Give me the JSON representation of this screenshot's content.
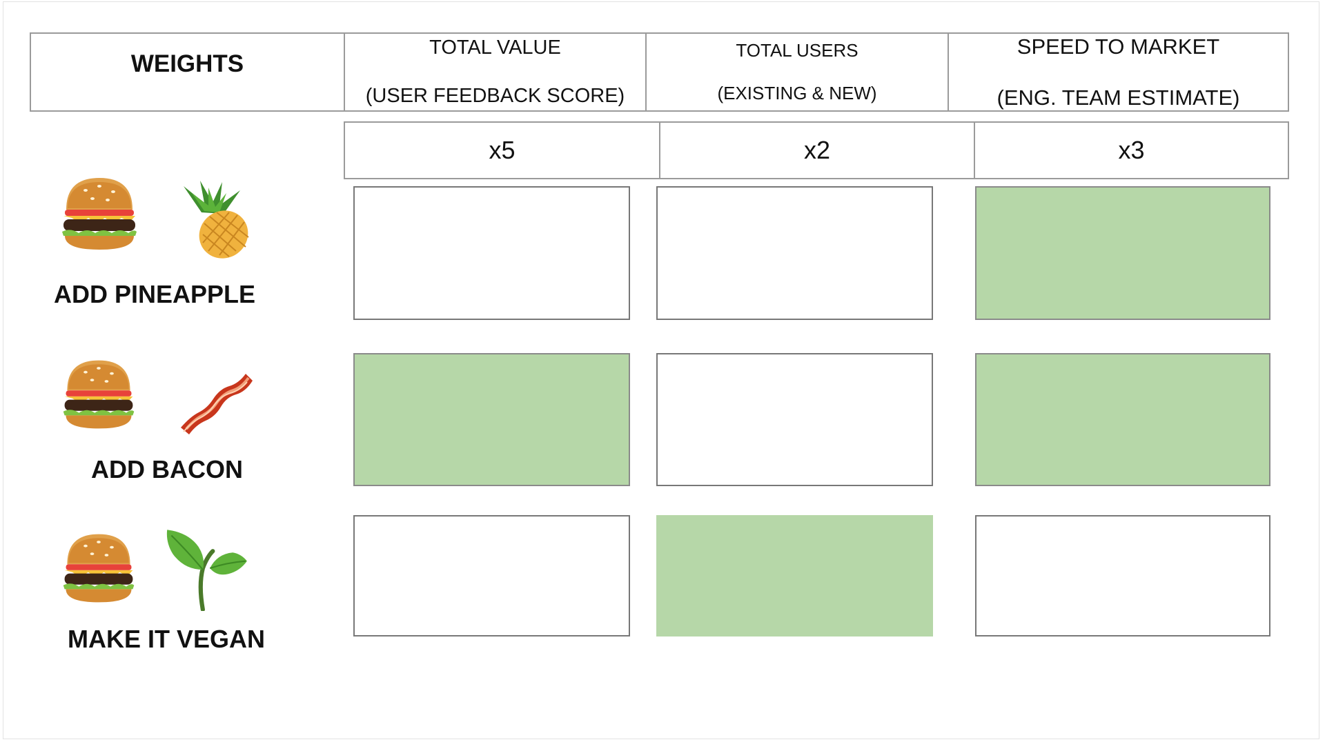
{
  "header": {
    "weights_label": "WEIGHTS",
    "columns": [
      {
        "line1": "TOTAL VALUE",
        "line2": "(USER FEEDBACK SCORE)"
      },
      {
        "line1": "TOTAL USERS",
        "line2": "(EXISTING & NEW)"
      },
      {
        "line1": "SPEED TO MARKET",
        "line2": "(ENG. TEAM ESTIMATE)"
      }
    ]
  },
  "weights": [
    "x5",
    "x2",
    "x3"
  ],
  "features": [
    {
      "label": "ADD PINEAPPLE",
      "icons": [
        "burger-icon",
        "pineapple-icon"
      ],
      "cells": [
        false,
        false,
        true
      ]
    },
    {
      "label": "ADD BACON",
      "icons": [
        "burger-icon",
        "bacon-icon"
      ],
      "cells": [
        true,
        false,
        true
      ]
    },
    {
      "label": "MAKE IT VEGAN",
      "icons": [
        "burger-icon",
        "seedling-icon"
      ],
      "cells": [
        false,
        true,
        false
      ]
    }
  ],
  "colors": {
    "highlight": "#b6d7a8",
    "border": "#9a9a9a"
  }
}
